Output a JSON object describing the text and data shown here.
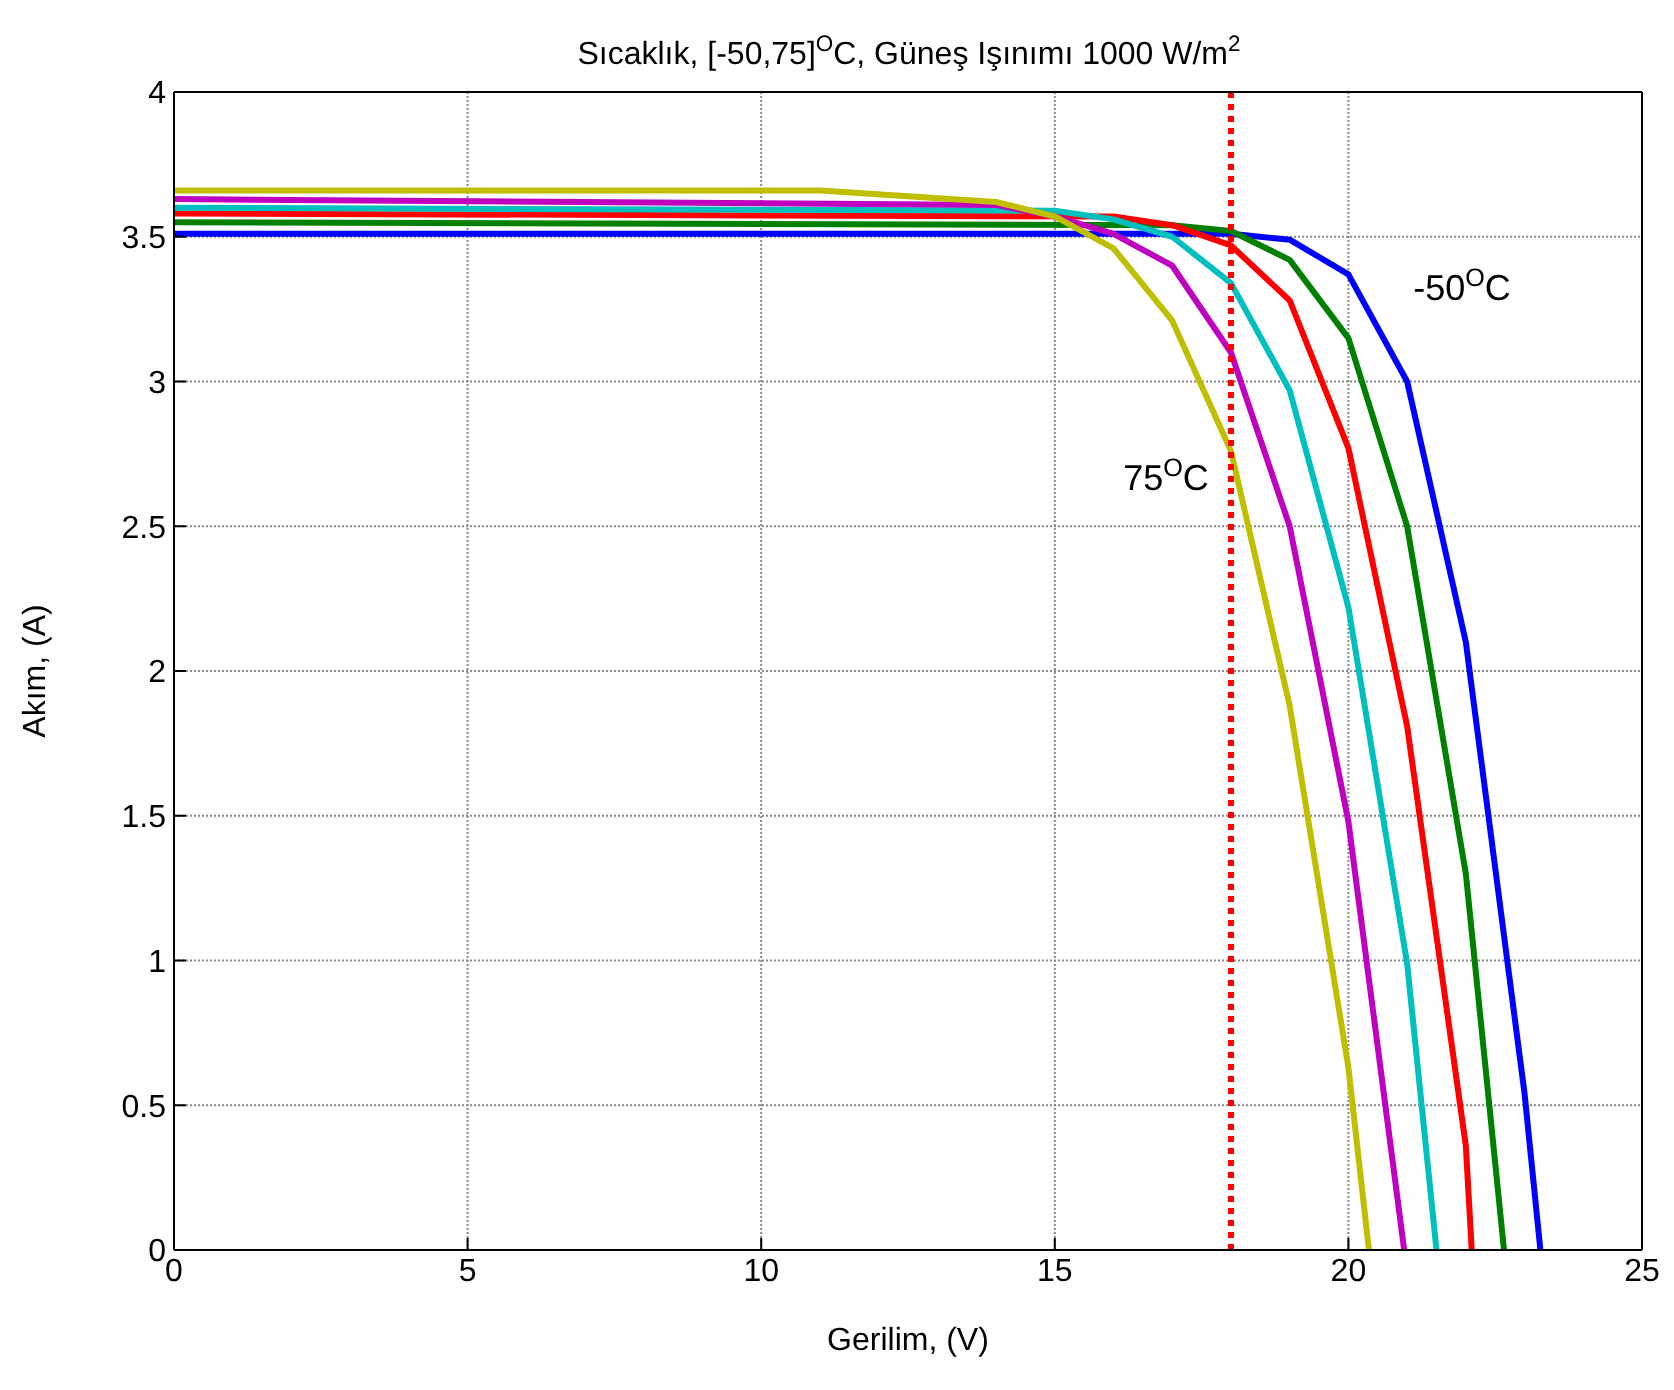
{
  "chart_data": {
    "type": "line",
    "title": "Sıcaklık, [-50,75]$^{O}$C, Güneş Işınımı 1000 W/m$^{2}$",
    "xlabel": "Gerilim, (V)",
    "ylabel": "Akım, (A)",
    "xlim": [
      0,
      25
    ],
    "xticks": [
      0,
      5,
      10,
      15,
      20,
      25
    ],
    "ylim": [
      0,
      4
    ],
    "yticks": [
      0,
      0.5,
      1,
      1.5,
      2,
      2.5,
      3,
      3.5,
      4
    ],
    "grid": true,
    "marker": "none",
    "line_style": "solid",
    "series": [
      {
        "color": "#0000ff",
        "x": [
          0,
          18,
          19,
          20,
          21,
          22,
          23,
          23.27
        ],
        "values": [
          3.51,
          3.51,
          3.49,
          3.37,
          3.0,
          2.1,
          0.54,
          0
        ]
      },
      {
        "color": "#008000",
        "x": [
          0,
          17,
          18,
          19,
          20,
          21,
          22,
          22.65
        ],
        "values": [
          3.55,
          3.54,
          3.52,
          3.42,
          3.15,
          2.5,
          1.3,
          0
        ]
      },
      {
        "color": "#ff0000",
        "x": [
          0,
          16,
          17,
          18,
          19,
          20,
          21,
          22,
          22.1
        ],
        "values": [
          3.58,
          3.57,
          3.54,
          3.47,
          3.28,
          2.77,
          1.81,
          0.36,
          0
        ]
      },
      {
        "color": "#00bfbf",
        "x": [
          0,
          15,
          16,
          17,
          18,
          19,
          20,
          21,
          21.5
        ],
        "values": [
          3.6,
          3.59,
          3.56,
          3.5,
          3.34,
          2.97,
          2.22,
          0.99,
          0
        ]
      },
      {
        "color": "#bf00bf",
        "x": [
          0,
          14,
          15,
          16,
          17,
          18,
          19,
          20,
          20.95
        ],
        "values": [
          3.63,
          3.61,
          3.57,
          3.51,
          3.4,
          3.1,
          2.5,
          1.48,
          0
        ]
      },
      {
        "color": "#bfbf00",
        "x": [
          0,
          11,
          14,
          15,
          16,
          17,
          18,
          19,
          20,
          20.35
        ],
        "values": [
          3.66,
          3.66,
          3.62,
          3.57,
          3.46,
          3.21,
          2.76,
          1.88,
          0.63,
          0
        ]
      }
    ],
    "ref_lines": [
      {
        "axis": "x",
        "value": 18,
        "color": "#ff0000",
        "line_style": "dotted"
      }
    ],
    "annotations": [
      "75$^{O}$C",
      "-50$^{O}$C"
    ]
  }
}
